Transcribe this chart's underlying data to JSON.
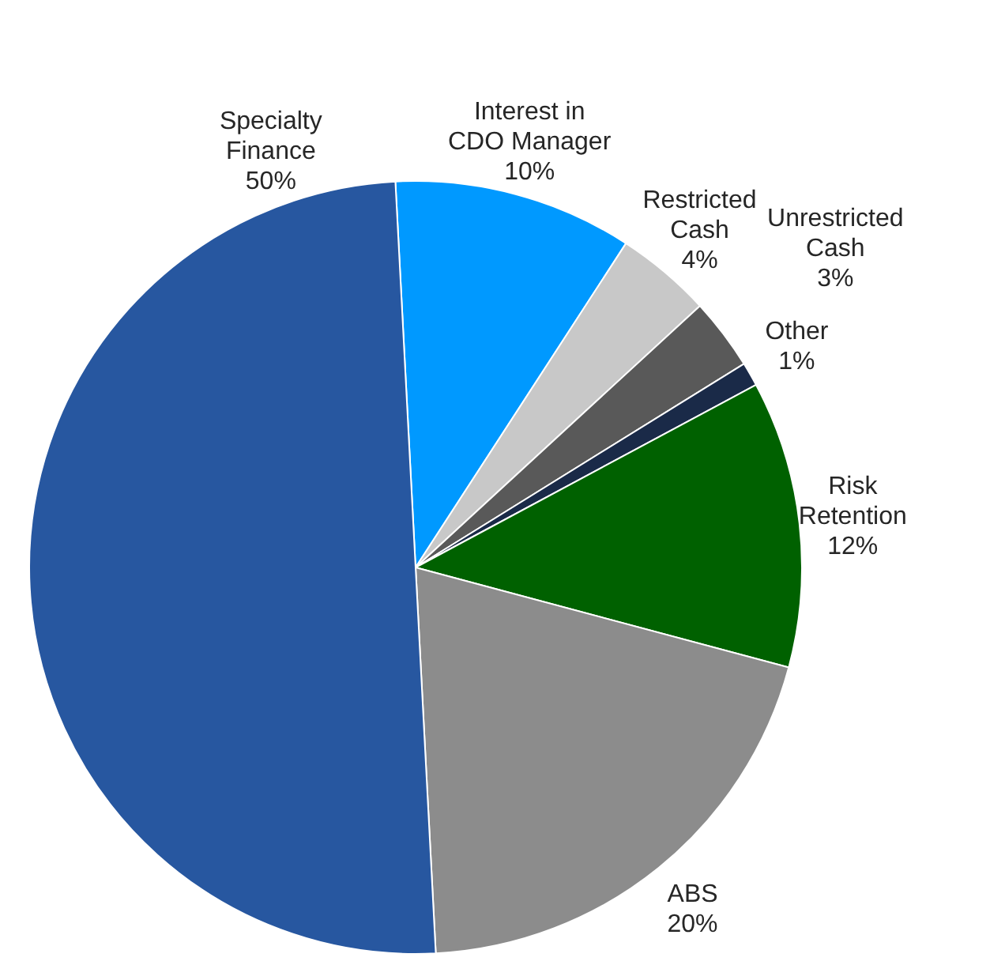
{
  "chart_data": {
    "type": "pie",
    "categories": [
      "Interest in CDO Manager",
      "Restricted Cash",
      "Unrestricted Cash",
      "Other",
      "Risk Retention",
      "ABS",
      "Specialty Finance"
    ],
    "values": [
      10,
      4,
      3,
      1,
      12,
      20,
      50
    ],
    "value_labels": [
      "10%",
      "4%",
      "3%",
      "1%",
      "12%",
      "20%",
      "50%"
    ],
    "colors": [
      "#0099ff",
      "#c8c8c8",
      "#595959",
      "#1a2a48",
      "#006100",
      "#8c8c8c",
      "#2757a0"
    ],
    "legend": false
  }
}
